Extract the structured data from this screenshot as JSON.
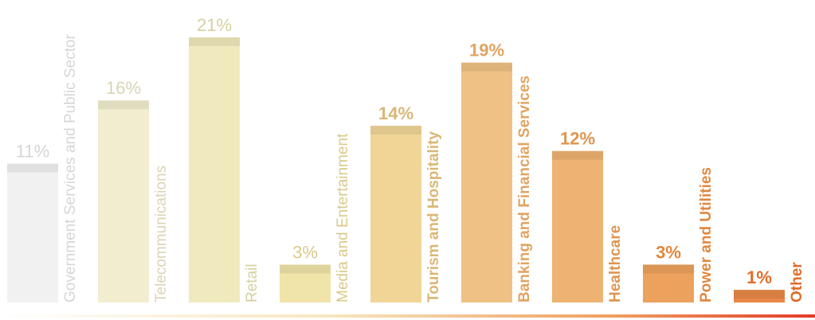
{
  "chart_data": {
    "type": "bar",
    "categories": [
      "Government Services and Public Sector",
      "Telecommunications",
      "Retail",
      "Media and Entertainment",
      "Tourism and Hospitality",
      "Banking and Financial Services",
      "Healthcare",
      "Power and Utilities",
      "Other"
    ],
    "values": [
      11,
      16,
      21,
      3,
      14,
      19,
      12,
      3,
      1
    ],
    "value_labels": [
      "11%",
      "16%",
      "21%",
      "3%",
      "14%",
      "19%",
      "12%",
      "3%",
      "1%"
    ],
    "colors": [
      "#f1f1f1",
      "#f2edcf",
      "#f0e9bd",
      "#f0e4a9",
      "#f0d597",
      "#efc184",
      "#eeb372",
      "#eca15c",
      "#e98848"
    ],
    "label_colors": [
      "#d6d6d6",
      "#d9d4b4",
      "#d6cf9e",
      "#d9c98a",
      "#d9b775",
      "#e0a461",
      "#de9550",
      "#e0873e",
      "#e06c2a"
    ]
  }
}
